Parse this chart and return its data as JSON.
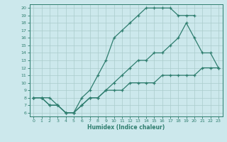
{
  "xlabel": "Humidex (Indice chaleur)",
  "bg_color": "#cce8ec",
  "line_color": "#2e7d6e",
  "grid_color": "#aacccc",
  "xlim": [
    -0.5,
    23.5
  ],
  "ylim": [
    5.5,
    20.5
  ],
  "xticks": [
    0,
    1,
    2,
    3,
    4,
    5,
    6,
    7,
    8,
    9,
    10,
    11,
    12,
    13,
    14,
    15,
    16,
    17,
    18,
    19,
    20,
    21,
    22,
    23
  ],
  "yticks": [
    6,
    7,
    8,
    9,
    10,
    11,
    12,
    13,
    14,
    15,
    16,
    17,
    18,
    19,
    20
  ],
  "curve1_x": [
    0,
    1,
    2,
    3,
    4,
    5,
    6,
    7,
    8,
    9,
    10,
    11,
    12,
    13,
    14,
    15,
    16,
    17,
    18,
    19,
    20
  ],
  "curve1_y": [
    8,
    8,
    8,
    7,
    6,
    6,
    8,
    9,
    11,
    13,
    16,
    17,
    18,
    19,
    20,
    20,
    20,
    20,
    19,
    19,
    19
  ],
  "curve2_x": [
    0,
    1,
    2,
    3,
    4,
    5,
    6,
    7,
    8,
    9,
    10,
    11,
    12,
    13,
    14,
    15,
    16,
    17,
    18,
    19,
    20,
    21,
    22,
    23
  ],
  "curve2_y": [
    8,
    8,
    7,
    7,
    6,
    6,
    7,
    8,
    8,
    9,
    10,
    11,
    12,
    13,
    13,
    14,
    14,
    15,
    16,
    18,
    16,
    14,
    14,
    12
  ],
  "curve3_x": [
    0,
    1,
    2,
    3,
    4,
    5,
    6,
    7,
    8,
    9,
    10,
    11,
    12,
    13,
    14,
    15,
    16,
    17,
    18,
    19,
    20,
    21,
    22,
    23
  ],
  "curve3_y": [
    8,
    8,
    7,
    7,
    6,
    6,
    7,
    8,
    8,
    9,
    9,
    9,
    10,
    10,
    10,
    10,
    11,
    11,
    11,
    11,
    11,
    12,
    12,
    12
  ]
}
